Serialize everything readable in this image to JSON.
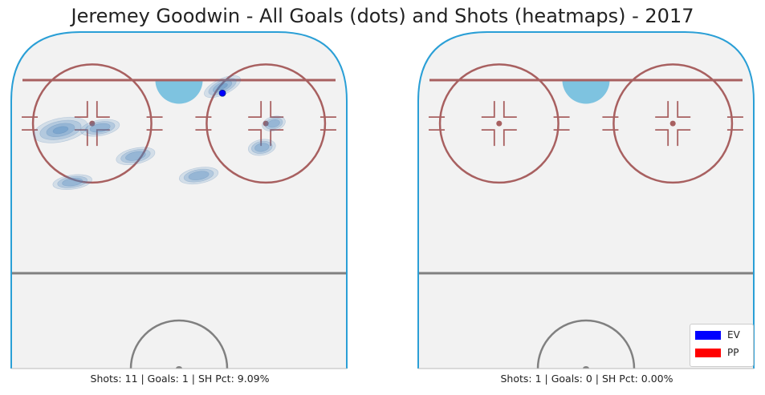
{
  "title": "Jeremey Goodwin - All Goals (dots) and Shots (heatmaps) - 2017",
  "colors": {
    "ice": "#f2f2f2",
    "boards": "#2a9fd6",
    "red_line": "#a86060",
    "crease": "#7ec3e0",
    "center_line": "#808080",
    "heat": "#4a86bf",
    "ev": "#0000ff",
    "pp": "#ff0000"
  },
  "legend": {
    "items": [
      {
        "label": "EV",
        "color": "#0000ff"
      },
      {
        "label": "PP",
        "color": "#ff0000"
      }
    ]
  },
  "chart_data": [
    {
      "type": "heatmap",
      "panel": "left",
      "caption": "Shots: 11 | Goals: 1 | SH Pct: 9.09%",
      "shots": [
        {
          "x": -30,
          "y": 66,
          "w": 7,
          "h": 3,
          "rot": -12,
          "level": 4
        },
        {
          "x": -20,
          "y": 67,
          "w": 5,
          "h": 2,
          "rot": -10,
          "level": 3
        },
        {
          "x": 11,
          "y": 86,
          "w": 5,
          "h": 2,
          "rot": -25,
          "level": 4
        },
        {
          "x": 24,
          "y": 69,
          "w": 3,
          "h": 1.8,
          "rot": -15,
          "level": 3
        },
        {
          "x": 21,
          "y": 58,
          "w": 3.5,
          "h": 2,
          "rot": -10,
          "level": 3
        },
        {
          "x": -11,
          "y": 54,
          "w": 5,
          "h": 2,
          "rot": -12,
          "level": 3
        },
        {
          "x": 5,
          "y": 45,
          "w": 5,
          "h": 2,
          "rot": -10,
          "level": 3
        },
        {
          "x": -27,
          "y": 42,
          "w": 5,
          "h": 1.8,
          "rot": -8,
          "level": 3
        }
      ],
      "goals": [
        {
          "x": 11,
          "y": 83,
          "strength": "EV"
        }
      ]
    },
    {
      "type": "heatmap",
      "panel": "right",
      "caption": "Shots: 1 | Goals: 0 | SH Pct: 0.00%",
      "shots": [],
      "goals": []
    }
  ]
}
